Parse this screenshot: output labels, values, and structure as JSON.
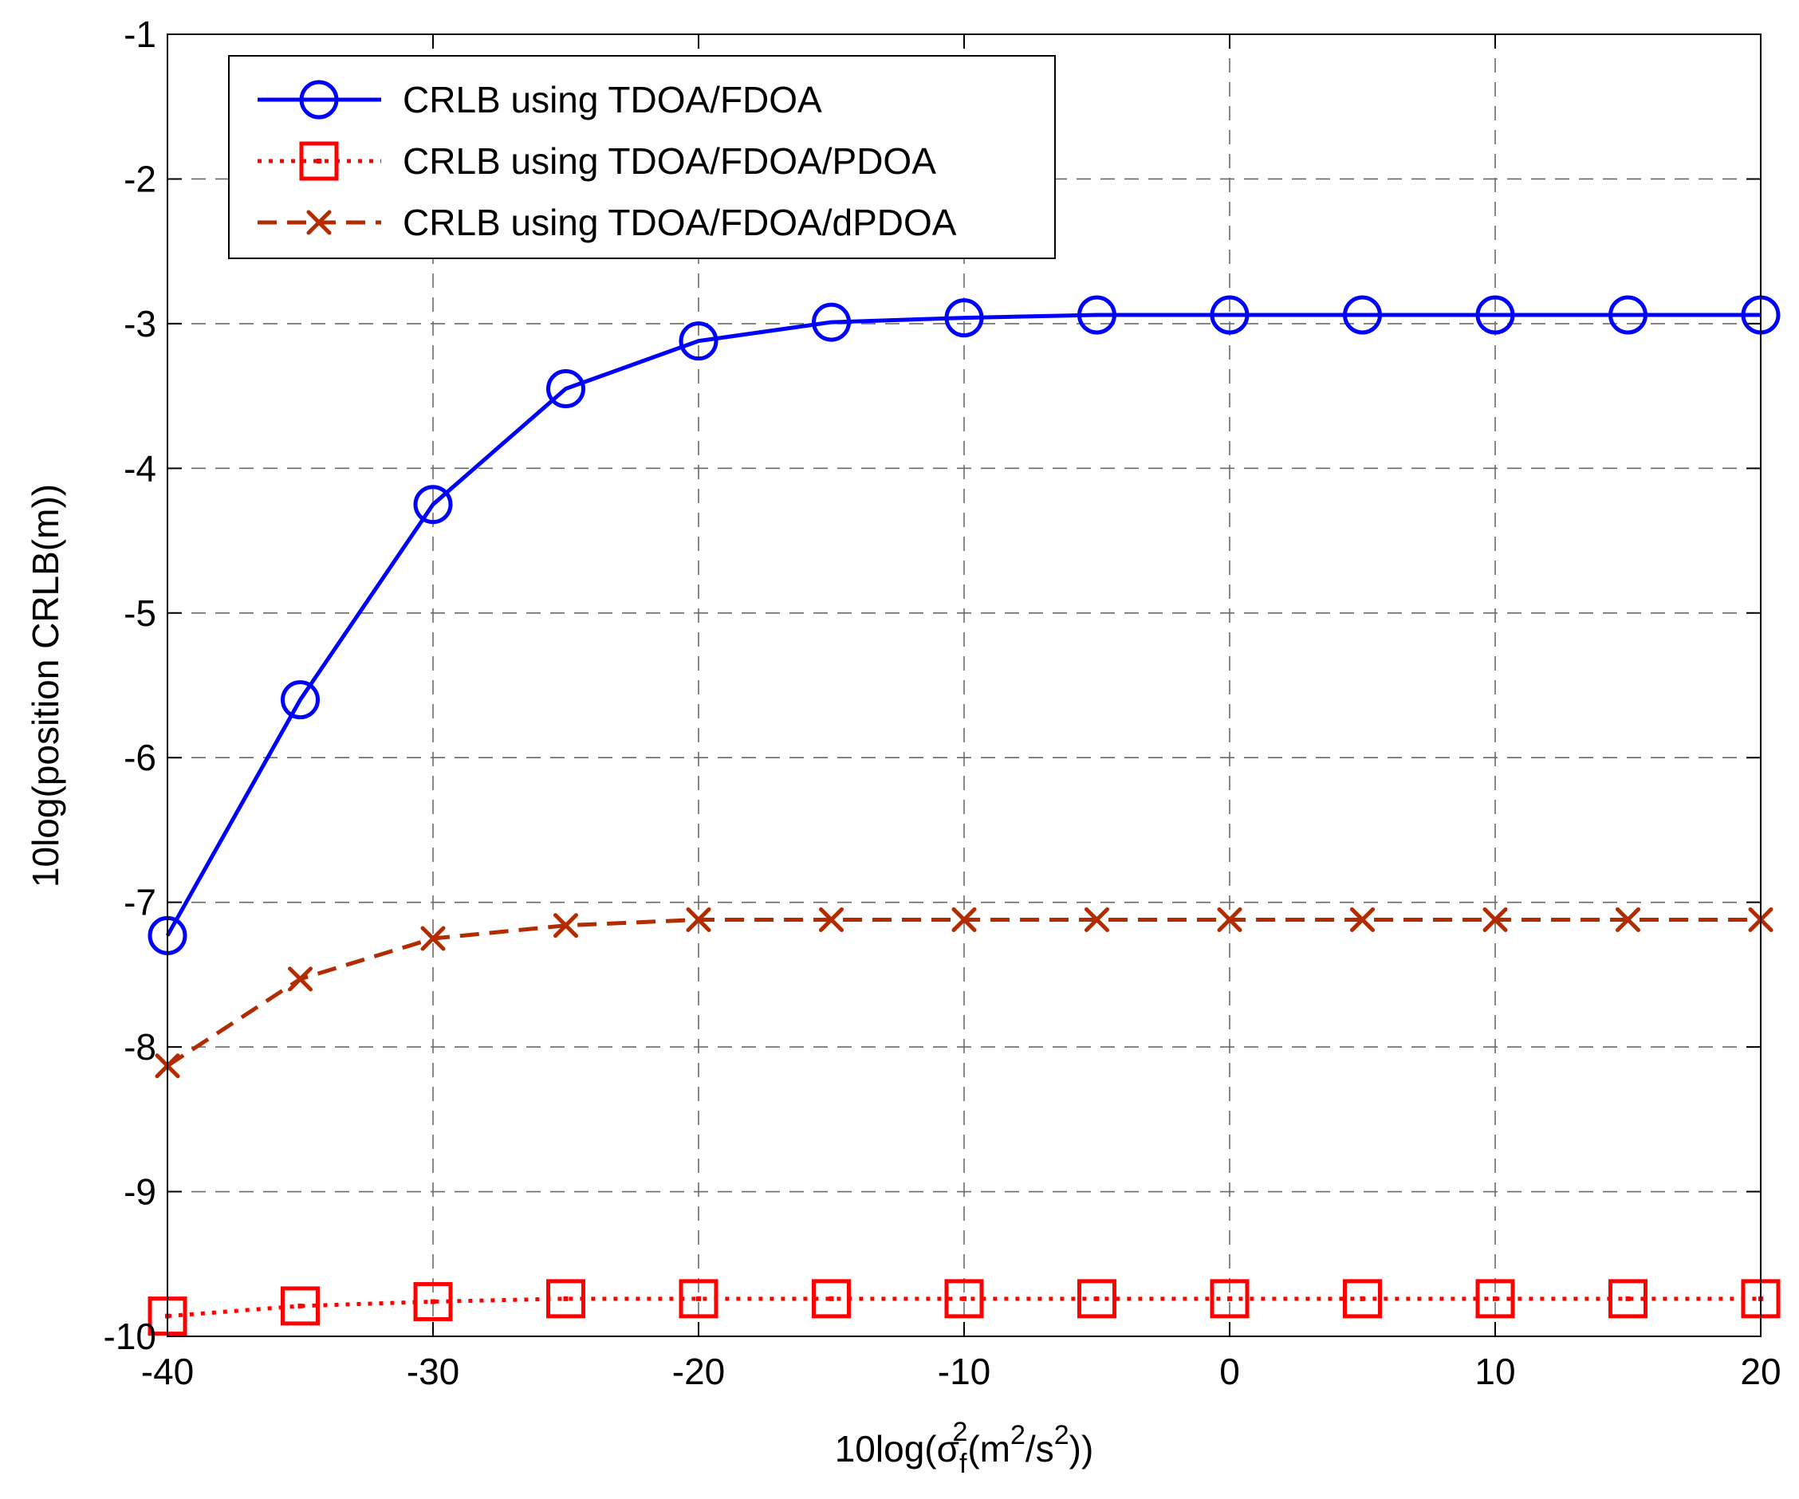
{
  "chart_data": {
    "type": "line",
    "title": "",
    "xlabel": {
      "prefix": "10log(",
      "sigma": "σ",
      "sigma_sub": "f",
      "sigma_sup": "2",
      "unit_open": "(m",
      "unit_sup1": "2",
      "unit_mid": "/s",
      "unit_sup2": "2",
      "suffix": "))"
    },
    "ylabel": "10log(position CRLB(m))",
    "xlim": [
      -40,
      20
    ],
    "ylim": [
      -10,
      -1
    ],
    "xticks": [
      -40,
      -30,
      -20,
      -10,
      0,
      10,
      20
    ],
    "yticks": [
      -10,
      -9,
      -8,
      -7,
      -6,
      -5,
      -4,
      -3,
      -2,
      -1
    ],
    "xtick_labels": [
      "-40",
      "-30",
      "-20",
      "-10",
      "0",
      "10",
      "20"
    ],
    "ytick_labels": [
      "-10",
      "-9",
      "-8",
      "-7",
      "-6",
      "-5",
      "-4",
      "-3",
      "-2",
      "-1"
    ],
    "grid": true,
    "legend_position": "top-left",
    "x": [
      -40,
      -35,
      -30,
      -25,
      -20,
      -15,
      -10,
      -5,
      0,
      5,
      10,
      15,
      20
    ],
    "series": [
      {
        "name": "CRLB using TDOA/FDOA",
        "color": "#0000ff",
        "line_style": "solid",
        "marker": "circle",
        "values": [
          -7.23,
          -5.6,
          -4.25,
          -3.45,
          -3.12,
          -2.99,
          -2.96,
          -2.94,
          -2.94,
          -2.94,
          -2.94,
          -2.94,
          -2.94
        ]
      },
      {
        "name": "CRLB using TDOA/FDOA/PDOA",
        "color": "#ff0000",
        "line_style": "dotted",
        "marker": "square",
        "values": [
          -9.86,
          -9.79,
          -9.76,
          -9.74,
          -9.74,
          -9.74,
          -9.74,
          -9.74,
          -9.74,
          -9.74,
          -9.74,
          -9.74,
          -9.74
        ]
      },
      {
        "name": "CRLB using TDOA/FDOA/dPDOA",
        "color": "#b22c00",
        "line_style": "dashed",
        "marker": "x",
        "values": [
          -8.13,
          -7.53,
          -7.25,
          -7.16,
          -7.12,
          -7.12,
          -7.12,
          -7.12,
          -7.12,
          -7.12,
          -7.12,
          -7.12,
          -7.12
        ]
      }
    ]
  }
}
